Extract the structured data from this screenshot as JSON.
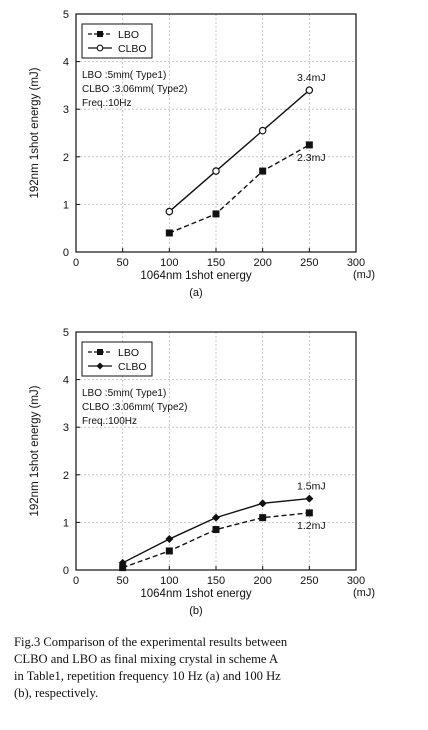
{
  "chart_data": [
    {
      "type": "line",
      "panel_label": "(a)",
      "xlabel": "1064nm 1shot energy",
      "xunit": "(mJ)",
      "ylabel": "192nm 1shot energy (mJ)",
      "xlim": [
        0,
        300
      ],
      "ylim": [
        0,
        5
      ],
      "xticks": [
        0,
        50,
        100,
        150,
        200,
        250,
        300
      ],
      "yticks": [
        0,
        1,
        2,
        3,
        4,
        5
      ],
      "grid": true,
      "legend_position": "top-left",
      "series": [
        {
          "name": "LBO",
          "marker": "square",
          "dash": true,
          "x": [
            100,
            150,
            200,
            250
          ],
          "y": [
            0.4,
            0.8,
            1.7,
            2.25
          ]
        },
        {
          "name": "CLBO",
          "marker": "circle",
          "dash": false,
          "x": [
            100,
            150,
            200,
            250
          ],
          "y": [
            0.85,
            1.7,
            2.55,
            3.4
          ]
        }
      ],
      "conditions": [
        "LBO :5mm( Type1)",
        "CLBO :3.06mm( Type2)",
        "Freq.:10Hz"
      ],
      "annotations": [
        {
          "text": "3.4mJ",
          "x": 250,
          "y": 3.4,
          "pos": "above"
        },
        {
          "text": "2.3mJ",
          "x": 250,
          "y": 2.25,
          "pos": "below"
        }
      ]
    },
    {
      "type": "line",
      "panel_label": "(b)",
      "xlabel": "1064nm 1shot energy",
      "xunit": "(mJ)",
      "ylabel": "192nm 1shot energy (mJ)",
      "xlim": [
        0,
        300
      ],
      "ylim": [
        0,
        5
      ],
      "xticks": [
        0,
        50,
        100,
        150,
        200,
        250,
        300
      ],
      "yticks": [
        0,
        1,
        2,
        3,
        4,
        5
      ],
      "grid": true,
      "legend_position": "top-left",
      "series": [
        {
          "name": "LBO",
          "marker": "square",
          "dash": true,
          "x": [
            50,
            100,
            150,
            200,
            250
          ],
          "y": [
            0.05,
            0.4,
            0.85,
            1.1,
            1.2
          ]
        },
        {
          "name": "CLBO",
          "marker": "diamond",
          "dash": false,
          "x": [
            50,
            100,
            150,
            200,
            250
          ],
          "y": [
            0.15,
            0.65,
            1.1,
            1.4,
            1.5
          ]
        }
      ],
      "conditions": [
        "LBO :5mm( Type1)",
        "CLBO :3.06mm( Type2)",
        "Freq.:100Hz"
      ],
      "annotations": [
        {
          "text": "1.5mJ",
          "x": 250,
          "y": 1.5,
          "pos": "above"
        },
        {
          "text": "1.2mJ",
          "x": 250,
          "y": 1.2,
          "pos": "below"
        }
      ]
    }
  ],
  "caption": {
    "lines": [
      "Fig.3  Comparison of the experimental results between",
      "CLBO and LBO as final mixing crystal in scheme A",
      "in Table1, repetition frequency 10 Hz (a) and 100 Hz",
      "(b), respectively."
    ]
  }
}
